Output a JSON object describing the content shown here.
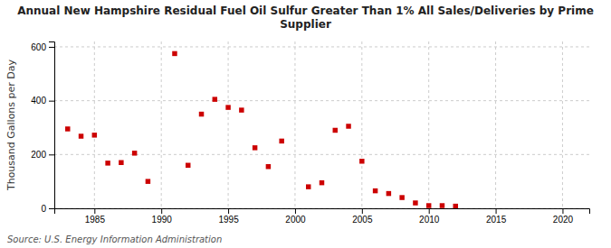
{
  "chart_data": {
    "type": "scatter",
    "title": "Annual New Hampshire Residual Fuel Oil Sulfur Greater Than 1% All Sales/Deliveries by Prime\nSupplier",
    "ylabel": "Thousand Gallons per Day",
    "source": "Source: U.S. Energy Information Administration",
    "color": "#cc0000",
    "marker": "square",
    "grid": true,
    "xlim": [
      1982,
      2022
    ],
    "ylim": [
      0,
      620
    ],
    "xticks": [
      1985,
      1990,
      1995,
      2000,
      2005,
      2010,
      2015,
      2020
    ],
    "yticks": [
      0,
      200,
      400,
      600
    ],
    "x": [
      1983,
      1984,
      1985,
      1986,
      1987,
      1988,
      1989,
      1991,
      1992,
      1993,
      1994,
      1995,
      1996,
      1997,
      1998,
      1999,
      2001,
      2002,
      2003,
      2004,
      2005,
      2006,
      2007,
      2008,
      2009,
      2010,
      2011,
      2012
    ],
    "values": [
      295,
      268,
      272,
      168,
      170,
      205,
      100,
      575,
      160,
      350,
      405,
      375,
      365,
      225,
      155,
      250,
      80,
      95,
      290,
      305,
      175,
      65,
      55,
      40,
      20,
      10,
      10,
      8
    ]
  }
}
